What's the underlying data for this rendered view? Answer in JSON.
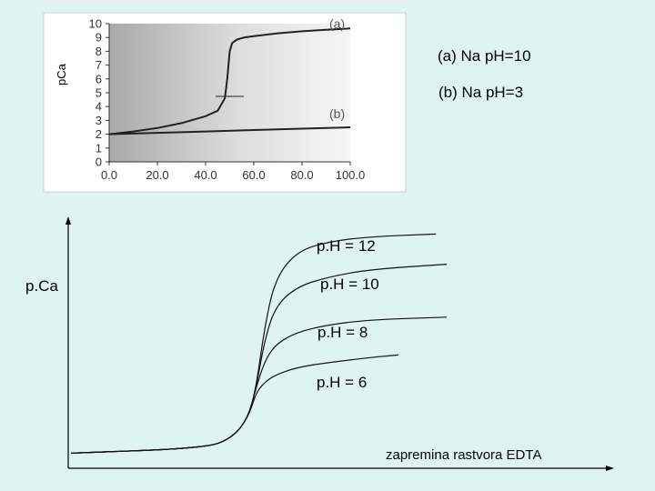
{
  "legend": {
    "a": "(a) Na pH=10",
    "b": "(b) Na pH=3"
  },
  "chart_data": [
    {
      "type": "line",
      "ylabel": "pCa",
      "xlabel": "",
      "xlim": [
        0,
        100
      ],
      "ylim": [
        0,
        10
      ],
      "x_ticks": [
        "0.0",
        "20.0",
        "40.0",
        "60.0",
        "80.0",
        "100.0"
      ],
      "y_ticks": [
        "0",
        "1",
        "2",
        "3",
        "4",
        "5",
        "6",
        "7",
        "8",
        "9",
        "10"
      ],
      "background": "gray gradient",
      "series": [
        {
          "name": "(a)",
          "color": "#222222",
          "x": [
            0,
            10,
            20,
            30,
            40,
            45,
            48,
            49,
            50,
            51,
            53,
            56,
            60,
            70,
            80,
            90,
            100
          ],
          "y": [
            2.0,
            2.2,
            2.45,
            2.8,
            3.3,
            3.7,
            4.6,
            6.0,
            8.0,
            8.6,
            8.85,
            9.0,
            9.1,
            9.3,
            9.45,
            9.55,
            9.65
          ]
        },
        {
          "name": "(b)",
          "color": "#222222",
          "x": [
            0,
            20,
            40,
            60,
            80,
            100
          ],
          "y": [
            2.0,
            2.1,
            2.2,
            2.3,
            2.4,
            2.5
          ]
        }
      ],
      "annotations": [
        "(a)",
        "(b)"
      ],
      "marker_hline_y": 4.6
    },
    {
      "type": "line",
      "ylabel": "p.Ca",
      "xlabel": "zapremina rastvora EDTA",
      "series": [
        {
          "name": "p.H = 12",
          "x": [
            0,
            0.25,
            0.3,
            0.33,
            0.345,
            0.36,
            0.38,
            0.42,
            0.48,
            0.56,
            0.68
          ],
          "y": [
            0.06,
            0.08,
            0.12,
            0.2,
            0.32,
            0.55,
            0.75,
            0.86,
            0.9,
            0.92,
            0.93
          ]
        },
        {
          "name": "p.H = 10",
          "x": [
            0,
            0.25,
            0.3,
            0.33,
            0.345,
            0.36,
            0.38,
            0.42,
            0.48,
            0.56,
            0.7
          ],
          "y": [
            0.06,
            0.08,
            0.12,
            0.2,
            0.32,
            0.5,
            0.64,
            0.72,
            0.76,
            0.79,
            0.81
          ]
        },
        {
          "name": "p.H = 8",
          "x": [
            0,
            0.25,
            0.3,
            0.33,
            0.345,
            0.36,
            0.38,
            0.42,
            0.48,
            0.56,
            0.7
          ],
          "y": [
            0.06,
            0.08,
            0.12,
            0.2,
            0.32,
            0.42,
            0.49,
            0.54,
            0.57,
            0.59,
            0.6
          ]
        },
        {
          "name": "p.H = 6",
          "x": [
            0,
            0.25,
            0.3,
            0.33,
            0.345,
            0.36,
            0.38,
            0.42,
            0.48,
            0.56,
            0.61
          ],
          "y": [
            0.06,
            0.08,
            0.12,
            0.2,
            0.3,
            0.34,
            0.37,
            0.4,
            0.42,
            0.44,
            0.45
          ]
        }
      ],
      "annotations": [
        "p.H = 12",
        "p.H = 10",
        "p.H = 8",
        "p.H = 6"
      ]
    }
  ]
}
